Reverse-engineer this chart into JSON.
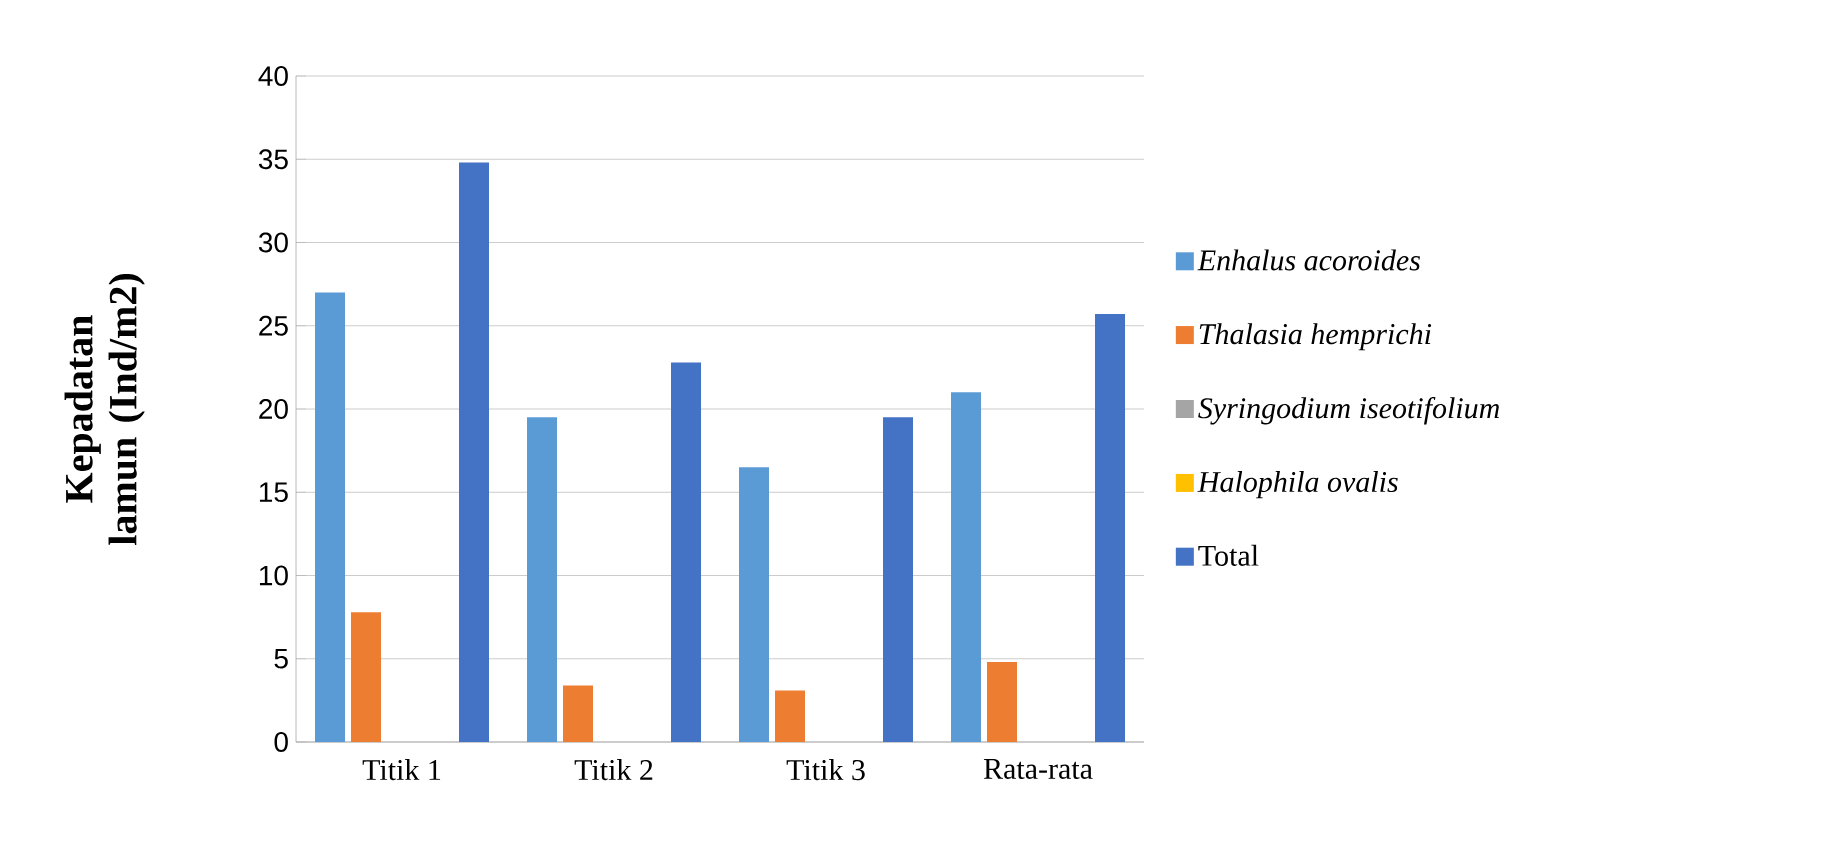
{
  "chart_data": {
    "type": "bar",
    "ylabel": "Kepadatan lamun (Ind/m2)",
    "categories": [
      "Titik 1",
      "Titik 2",
      "Titik 3",
      "Rata-rata"
    ],
    "series": [
      {
        "name": "*Enhalus acoroides*",
        "color": "#5b9bd5",
        "values": [
          27,
          19.5,
          16.5,
          21
        ]
      },
      {
        "name": "*Thalasia hemprichi*",
        "color": "#ed7d31",
        "values": [
          7.8,
          3.4,
          3.1,
          4.8
        ]
      },
      {
        "name": "*Syringodium iseotifolium*",
        "color": "#a5a5a5",
        "values": [
          0,
          0,
          0,
          0
        ]
      },
      {
        "name": "*Halophila ovalis*",
        "color": "#ffc000",
        "values": [
          0,
          0,
          0,
          0
        ]
      },
      {
        "name": "Total",
        "color": "#4472c4",
        "values": [
          34.8,
          22.8,
          19.5,
          25.7
        ]
      }
    ],
    "ylim": [
      0,
      40
    ],
    "yticks": [
      0,
      5,
      10,
      15,
      20,
      25,
      30,
      35,
      40
    ],
    "grid": "y",
    "legend": "right"
  }
}
